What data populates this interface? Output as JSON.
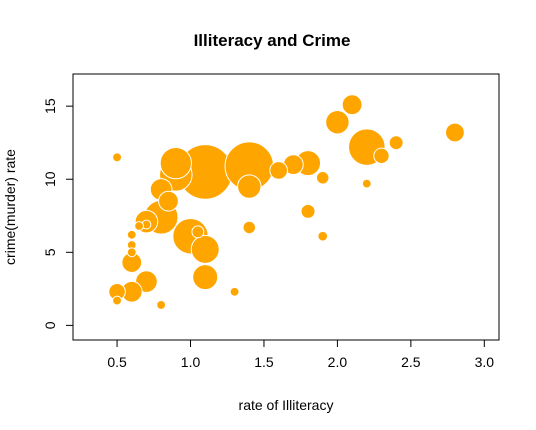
{
  "chart_data": {
    "type": "scatter",
    "subtype": "bubble",
    "title": "Illiteracy and Crime",
    "xlabel": "rate of Illiteracy",
    "ylabel": "crime(murder) rate",
    "xlim": [
      0.2,
      3.1
    ],
    "ylim": [
      -1,
      17.2
    ],
    "x_ticks": [
      0.5,
      1.0,
      1.5,
      2.0,
      2.5,
      3.0
    ],
    "x_tick_labels": [
      "0.5",
      "1.0",
      "1.5",
      "2.0",
      "2.5",
      "3.0"
    ],
    "y_ticks": [
      0,
      5,
      10,
      15
    ],
    "y_tick_labels": [
      "0",
      "5",
      "10",
      "15"
    ],
    "grid": false,
    "legend": "none",
    "marker_color": "#FFA500",
    "marker_edge_color": "#FFFFFF",
    "size_variable_relative_max": 40,
    "points": [
      {
        "x": 1.1,
        "y": 10.5,
        "size": 38
      },
      {
        "x": 1.4,
        "y": 10.9,
        "size": 30
      },
      {
        "x": 2.2,
        "y": 12.2,
        "size": 17
      },
      {
        "x": 1.0,
        "y": 6.1,
        "size": 16
      },
      {
        "x": 0.8,
        "y": 7.4,
        "size": 14.5
      },
      {
        "x": 0.9,
        "y": 10.3,
        "size": 13.5
      },
      {
        "x": 0.9,
        "y": 11.1,
        "size": 12.5
      },
      {
        "x": 1.1,
        "y": 5.2,
        "size": 10
      },
      {
        "x": 1.8,
        "y": 11.1,
        "size": 8
      },
      {
        "x": 1.1,
        "y": 3.3,
        "size": 8
      },
      {
        "x": 2.0,
        "y": 13.9,
        "size": 7
      },
      {
        "x": 1.4,
        "y": 9.5,
        "size": 7
      },
      {
        "x": 0.7,
        "y": 7.1,
        "size": 6.5
      },
      {
        "x": 0.7,
        "y": 3.0,
        "size": 6
      },
      {
        "x": 0.8,
        "y": 9.3,
        "size": 6
      },
      {
        "x": 0.6,
        "y": 2.3,
        "size": 5.5
      },
      {
        "x": 0.6,
        "y": 4.3,
        "size": 5
      },
      {
        "x": 1.7,
        "y": 11.0,
        "size": 5
      },
      {
        "x": 2.1,
        "y": 15.1,
        "size": 5
      },
      {
        "x": 0.85,
        "y": 8.5,
        "size": 5
      },
      {
        "x": 2.8,
        "y": 13.2,
        "size": 4.5
      },
      {
        "x": 1.6,
        "y": 10.6,
        "size": 4
      },
      {
        "x": 0.5,
        "y": 2.3,
        "size": 3.5
      },
      {
        "x": 2.3,
        "y": 11.6,
        "size": 3
      },
      {
        "x": 2.4,
        "y": 12.5,
        "size": 2.5
      },
      {
        "x": 1.8,
        "y": 7.8,
        "size": 2.5
      },
      {
        "x": 1.9,
        "y": 10.1,
        "size": 2
      },
      {
        "x": 1.4,
        "y": 6.7,
        "size": 2
      },
      {
        "x": 1.05,
        "y": 6.4,
        "size": 1.8
      },
      {
        "x": 1.9,
        "y": 6.1,
        "size": 1.2
      },
      {
        "x": 0.6,
        "y": 5.5,
        "size": 1
      },
      {
        "x": 0.6,
        "y": 5.0,
        "size": 1
      },
      {
        "x": 0.5,
        "y": 11.5,
        "size": 1
      },
      {
        "x": 0.5,
        "y": 1.7,
        "size": 1
      },
      {
        "x": 0.8,
        "y": 1.4,
        "size": 1
      },
      {
        "x": 1.3,
        "y": 2.3,
        "size": 1
      },
      {
        "x": 2.2,
        "y": 9.7,
        "size": 1
      },
      {
        "x": 0.6,
        "y": 6.2,
        "size": 1
      },
      {
        "x": 0.7,
        "y": 6.9,
        "size": 1
      },
      {
        "x": 0.65,
        "y": 6.8,
        "size": 1
      }
    ]
  }
}
